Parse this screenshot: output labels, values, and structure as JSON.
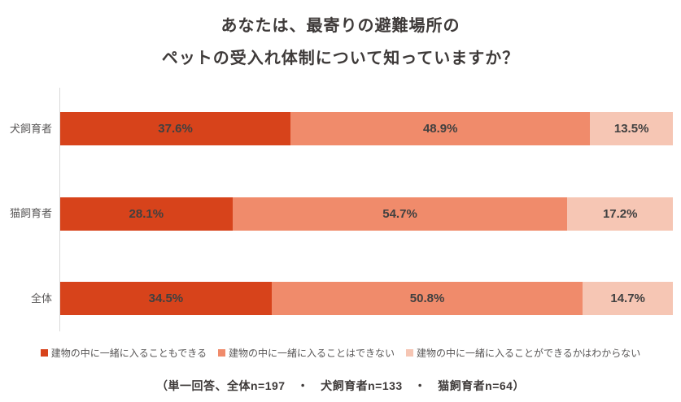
{
  "title": {
    "line1": "あなたは、最寄りの避難場所の",
    "line2": "ペットの受入れ体制について知っていますか？"
  },
  "chart_data": {
    "type": "bar",
    "orientation": "horizontal",
    "stacked": true,
    "title": "あなたは、最寄りの避難場所の ペットの受入れ体制について知っていますか？",
    "categories": [
      "犬飼育者",
      "猫飼育者",
      "全体"
    ],
    "series": [
      {
        "name": "建物の中に一緒に入ることもできる",
        "color": "#d7431b",
        "values": [
          37.6,
          28.1,
          34.5
        ]
      },
      {
        "name": "建物の中に一緒に入ることはできない",
        "color": "#f08b6b",
        "values": [
          48.9,
          54.7,
          50.8
        ]
      },
      {
        "name": "建物の中に一緒に入ることができるかはわからない",
        "color": "#f6c6b4",
        "values": [
          13.5,
          17.2,
          14.7
        ]
      }
    ],
    "value_suffix": "%",
    "xlim": [
      0,
      100
    ],
    "grid": false,
    "legend_position": "bottom",
    "data_labels": true
  },
  "footer": {
    "note": "（単一回答、全体n=197　・　犬飼育者n=133　・　猫飼育者n=64）"
  },
  "colors": {
    "title_text": "#3e3a39",
    "category_text": "#595757",
    "data_label_text": "#404040",
    "legend_text": "#595757",
    "axis_line": "#d9d9d9",
    "background": "#ffffff"
  }
}
